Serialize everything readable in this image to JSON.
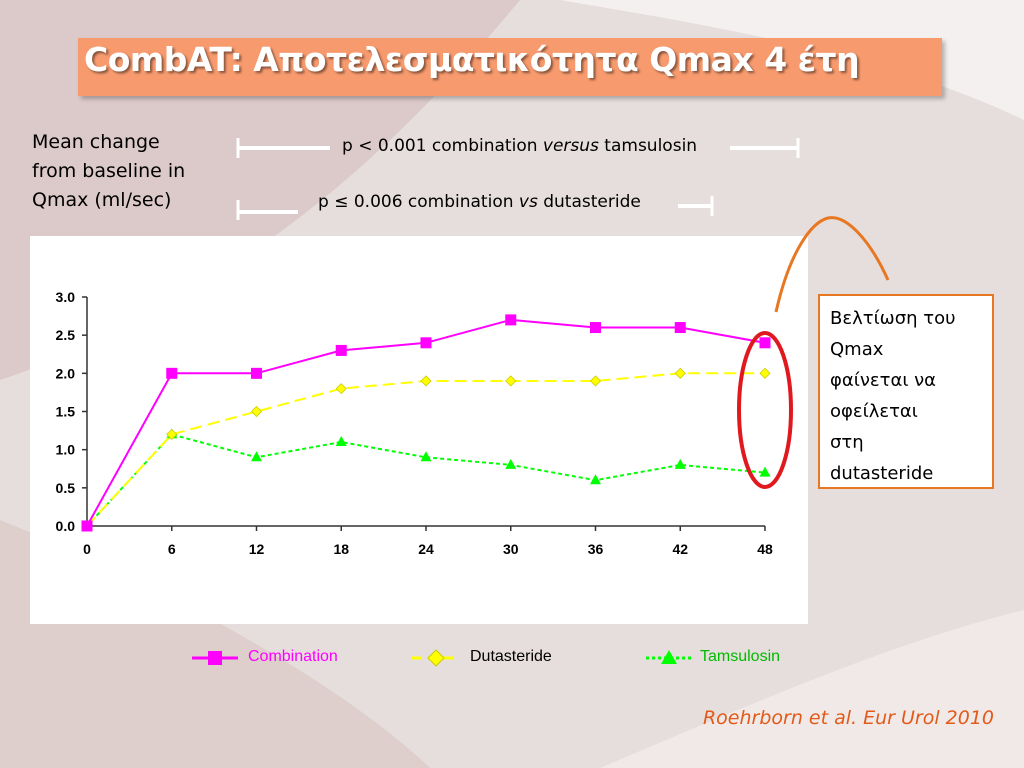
{
  "slide": {
    "title": "CombAT: Αποτελεσματικότητα Qmax 4 έτη",
    "y_label_lines": [
      "Mean change",
      "from baseline in",
      "Qmax (ml/sec)"
    ],
    "pvalues": [
      {
        "prefix": "p < 0.001 combination ",
        "emph": "versus",
        "suffix": " tamsulosin"
      },
      {
        "prefix": "p ≤ 0.006 combination ",
        "emph": "vs",
        "suffix": " dutasteride"
      }
    ],
    "note_lines": [
      "Βελτίωση του",
      "Qmax",
      "φαίνεται να",
      "οφείλεται",
      "στη",
      "dutasteride"
    ],
    "citation": "Roehrborn et al. Eur Urol  2010",
    "colors": {
      "title_bg": "#f79a6e",
      "combination": "#ff00ff",
      "dutasteride": "#ffff00",
      "tamsulosin": "#00ff00",
      "highlight": "#e0191f",
      "accent_orange": "#e87722"
    }
  },
  "chart_data": {
    "type": "line",
    "x": [
      0,
      6,
      12,
      18,
      24,
      30,
      36,
      42,
      48
    ],
    "x_tick_labels": [
      "0",
      "6",
      "12",
      "18",
      "24",
      "30",
      "36",
      "42",
      "48"
    ],
    "y_ticks": [
      0,
      0.5,
      1.0,
      1.5,
      2.0,
      2.5,
      3.0
    ],
    "y_tick_labels": [
      "0.0",
      "0.5",
      "1.0",
      "1.5",
      "2.0",
      "2.5",
      "3.0"
    ],
    "ylim": [
      0,
      3.0
    ],
    "xlim": [
      0,
      48
    ],
    "grid": false,
    "legend_position": "bottom",
    "series": [
      {
        "name": "Combination",
        "marker": "square",
        "dash": "solid",
        "color": "#ff00ff",
        "values": [
          0,
          2.0,
          2.0,
          2.3,
          2.4,
          2.7,
          2.6,
          2.6,
          2.4
        ]
      },
      {
        "name": "Dutasteride",
        "marker": "diamond",
        "dash": "dashed",
        "color": "#ffff00",
        "values": [
          0,
          1.2,
          1.5,
          1.8,
          1.9,
          1.9,
          1.9,
          2.0,
          2.0
        ]
      },
      {
        "name": "Tamsulosin",
        "marker": "triangle",
        "dash": "dotted",
        "color": "#00ff00",
        "values": [
          0,
          1.2,
          0.9,
          1.1,
          0.9,
          0.8,
          0.6,
          0.8,
          0.7
        ]
      }
    ]
  }
}
